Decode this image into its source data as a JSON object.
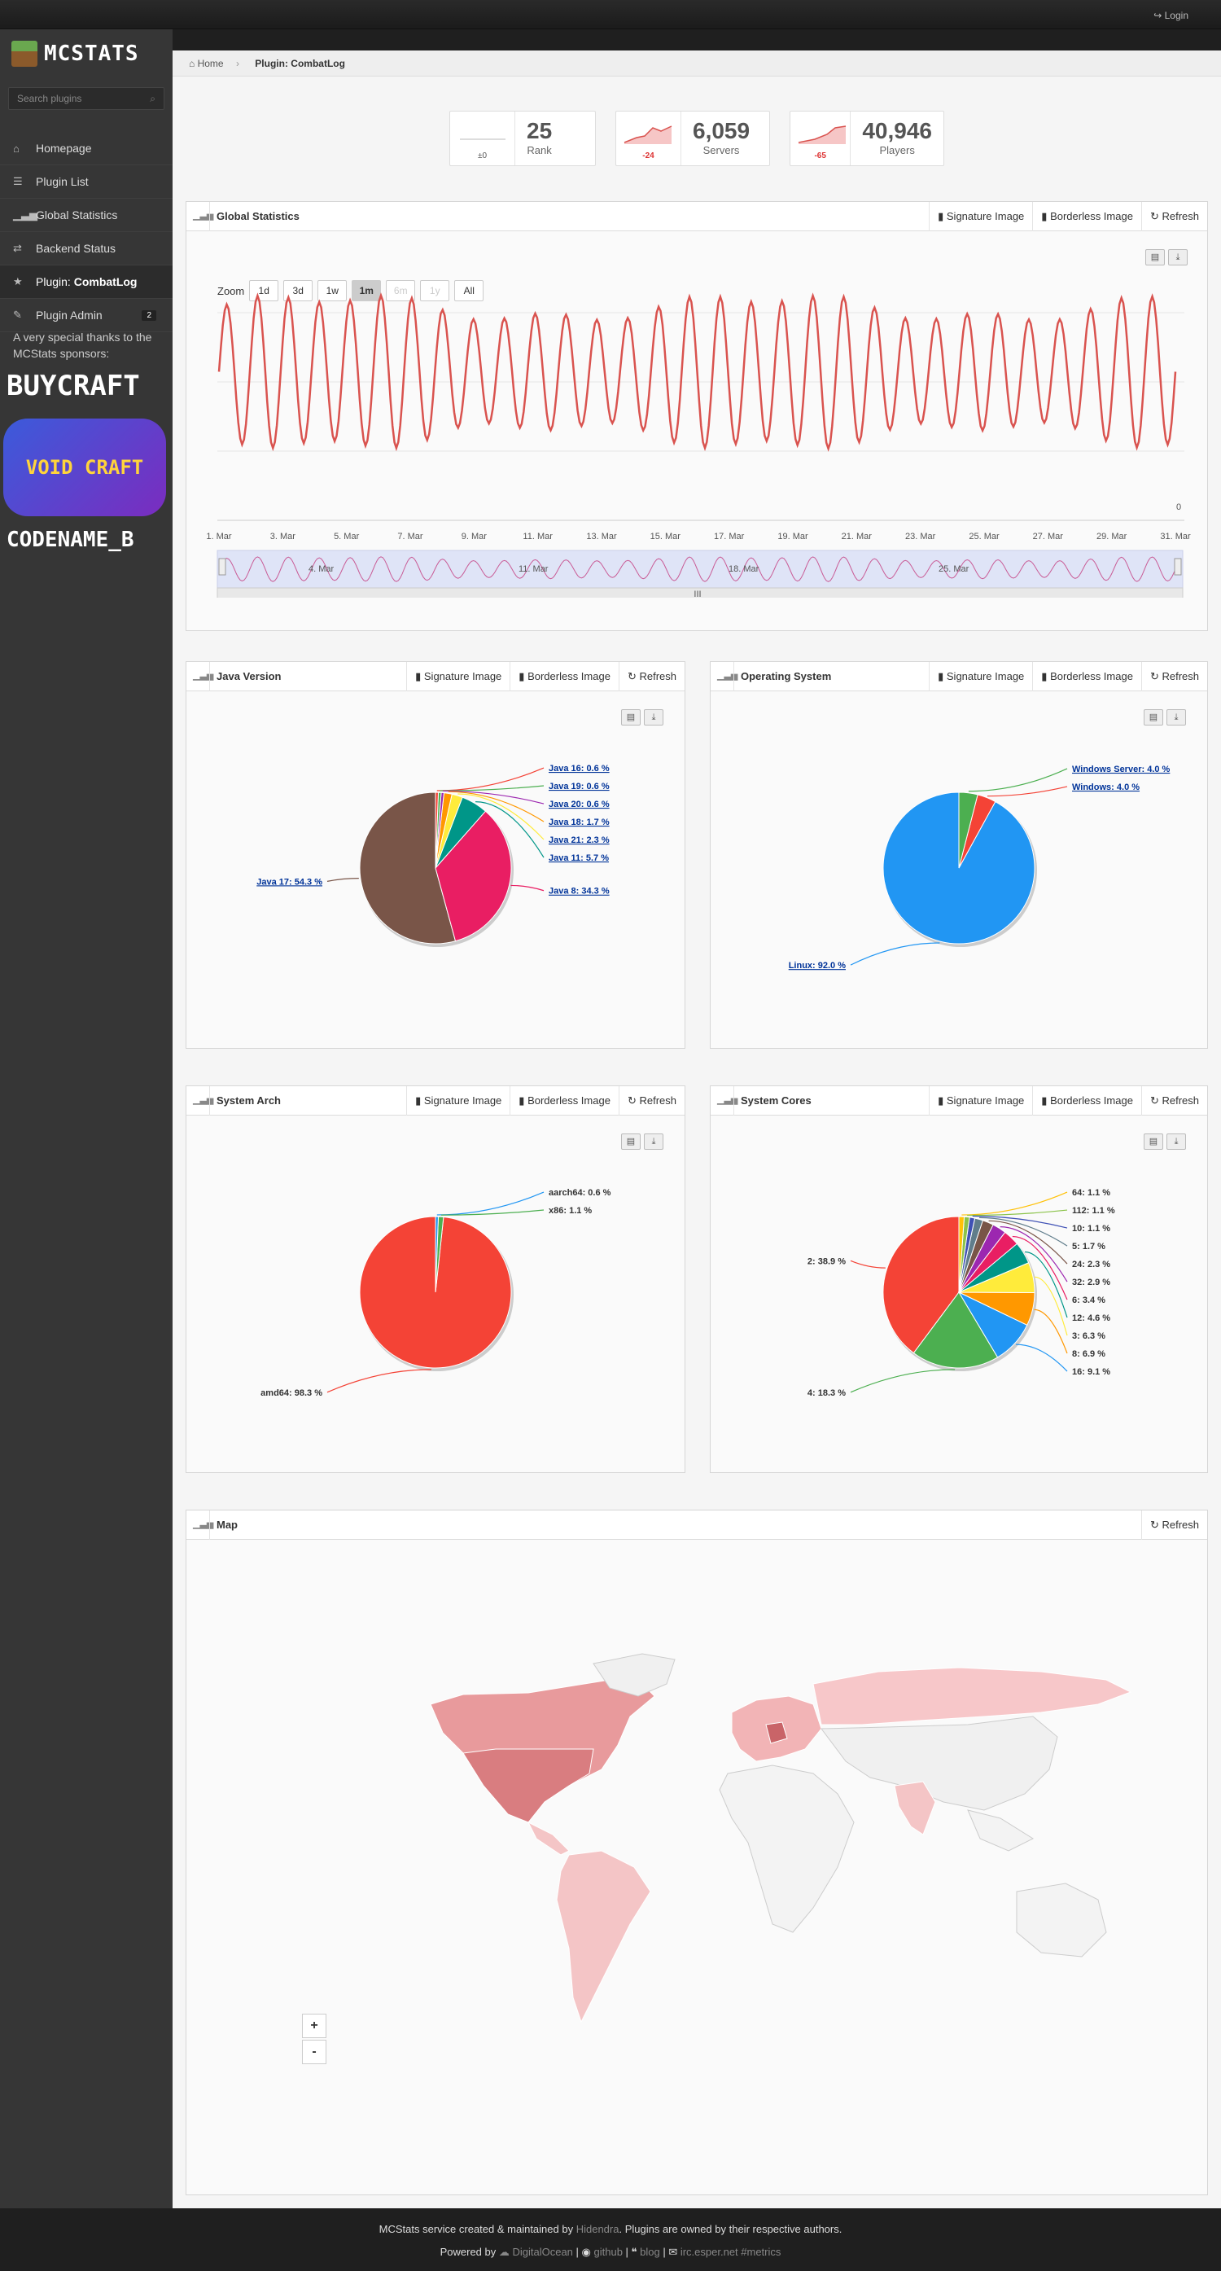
{
  "topbar": {
    "login_label": "Login"
  },
  "sidebar": {
    "logo_text": "MCSTATS",
    "search_placeholder": "Search plugins",
    "items": [
      {
        "label": "Homepage",
        "icon": "home-icon"
      },
      {
        "label": "Plugin List",
        "icon": "list-icon"
      },
      {
        "label": "Global Statistics",
        "icon": "signal-icon"
      },
      {
        "label": "Backend Status",
        "icon": "exchange-icon"
      },
      {
        "label_prefix": "Plugin: ",
        "label": "CombatLog",
        "icon": "star-icon"
      },
      {
        "label": "Plugin Admin",
        "icon": "wrench-icon",
        "badge": "2"
      }
    ],
    "thanks": "A very special thanks to the MCStats sponsors:",
    "sponsors": [
      "BUYCRAFT",
      "VOID CRAFT",
      "CODENAME_B"
    ]
  },
  "breadcrumb": {
    "home": "Home",
    "current": "Plugin: CombatLog"
  },
  "stats": [
    {
      "delta": "±0",
      "value": "25",
      "label": "Rank"
    },
    {
      "delta": "-24",
      "value": "6,059",
      "label": "Servers"
    },
    {
      "delta": "-65",
      "value": "40,946",
      "label": "Players"
    }
  ],
  "buttons": {
    "signature": "Signature Image",
    "borderless": "Borderless Image",
    "refresh": "Refresh"
  },
  "global": {
    "title": "Global Statistics",
    "zoom_label": "Zoom",
    "zoom": [
      "1d",
      "3d",
      "1w",
      "1m",
      "6m",
      "1y",
      "All"
    ],
    "zoom_selected": "1m",
    "zoom_disabled": [
      "6m",
      "1y"
    ],
    "y_tick": "0"
  },
  "map": {
    "title": "Map",
    "zoom_in": "+",
    "zoom_out": "-"
  },
  "footer": {
    "line1_a": "MCStats service created & maintained by ",
    "line1_b": "Hidendra",
    "line1_c": ". Plugins are owned by their respective authors.",
    "line2_a": "Powered by ",
    "line2_b": "DigitalOcean",
    "line2_c": "github",
    "line2_d": "blog",
    "line2_e": "irc.esper.net #metrics"
  },
  "chart_data": [
    {
      "type": "line",
      "title": "Global Statistics",
      "x": [
        "1. Mar",
        "3. Mar",
        "5. Mar",
        "7. Mar",
        "9. Mar",
        "11. Mar",
        "13. Mar",
        "15. Mar",
        "17. Mar",
        "19. Mar",
        "21. Mar",
        "23. Mar",
        "25. Mar",
        "27. Mar",
        "29. Mar",
        "31. Mar"
      ],
      "navigator_labels": [
        "4. Mar",
        "11. Mar",
        "18. Mar",
        "25. Mar"
      ],
      "series_color": "#d9534f"
    },
    {
      "type": "pie",
      "title": "Java Version",
      "slices": [
        {
          "label": "Java 17: 54.3 %",
          "value": 54.3,
          "color": "#795548"
        },
        {
          "label": "Java 8: 34.3 %",
          "value": 34.3,
          "color": "#e91e63"
        },
        {
          "label": "Java 11: 5.7 %",
          "value": 5.7,
          "color": "#009688"
        },
        {
          "label": "Java 21: 2.3 %",
          "value": 2.3,
          "color": "#ffeb3b"
        },
        {
          "label": "Java 18: 1.7 %",
          "value": 1.7,
          "color": "#ff9800"
        },
        {
          "label": "Java 20: 0.6 %",
          "value": 0.6,
          "color": "#9c27b0"
        },
        {
          "label": "Java 19: 0.6 %",
          "value": 0.6,
          "color": "#4caf50"
        },
        {
          "label": "Java 16: 0.6 %",
          "value": 0.6,
          "color": "#f44336"
        }
      ]
    },
    {
      "type": "pie",
      "title": "Operating System",
      "slices": [
        {
          "label": "Linux: 92.0 %",
          "value": 92.0,
          "color": "#2196f3"
        },
        {
          "label": "Windows: 4.0 %",
          "value": 4.0,
          "color": "#f44336"
        },
        {
          "label": "Windows Server: 4.0 %",
          "value": 4.0,
          "color": "#4caf50"
        }
      ]
    },
    {
      "type": "pie",
      "title": "System Arch",
      "slices": [
        {
          "label": "amd64: 98.3 %",
          "value": 98.3,
          "color": "#f44336"
        },
        {
          "label": "x86: 1.1 %",
          "value": 1.1,
          "color": "#4caf50"
        },
        {
          "label": "aarch64: 0.6 %",
          "value": 0.6,
          "color": "#2196f3"
        }
      ]
    },
    {
      "type": "pie",
      "title": "System Cores",
      "slices": [
        {
          "label": "2: 38.9 %",
          "value": 38.9,
          "color": "#f44336"
        },
        {
          "label": "4: 18.3 %",
          "value": 18.3,
          "color": "#4caf50"
        },
        {
          "label": "16: 9.1 %",
          "value": 9.1,
          "color": "#2196f3"
        },
        {
          "label": "8: 6.9 %",
          "value": 6.9,
          "color": "#ff9800"
        },
        {
          "label": "3: 6.3 %",
          "value": 6.3,
          "color": "#ffeb3b"
        },
        {
          "label": "12: 4.6 %",
          "value": 4.6,
          "color": "#009688"
        },
        {
          "label": "6: 3.4 %",
          "value": 3.4,
          "color": "#e91e63"
        },
        {
          "label": "32: 2.9 %",
          "value": 2.9,
          "color": "#9c27b0"
        },
        {
          "label": "24: 2.3 %",
          "value": 2.3,
          "color": "#795548"
        },
        {
          "label": "5: 1.7 %",
          "value": 1.7,
          "color": "#607d8b"
        },
        {
          "label": "10: 1.1 %",
          "value": 1.1,
          "color": "#3f51b5"
        },
        {
          "label": "112: 1.1 %",
          "value": 1.1,
          "color": "#8bc34a"
        },
        {
          "label": "64: 1.1 %",
          "value": 1.1,
          "color": "#ffc107"
        }
      ]
    }
  ]
}
